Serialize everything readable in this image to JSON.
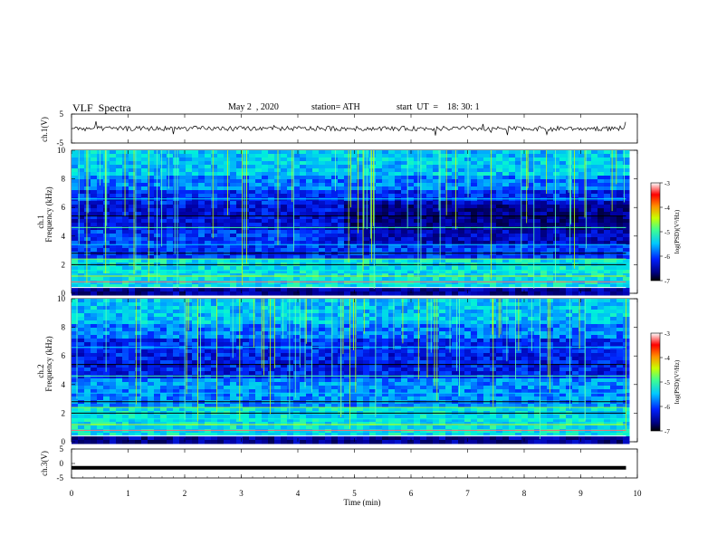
{
  "header": {
    "title": "VLF  Spectra",
    "date": "May 2  , 2020",
    "station": "station= ATH",
    "start": "start  UT  =    18: 30: 1"
  },
  "chart_data": [
    {
      "type": "line",
      "panel": "ch1-waveform",
      "ylabel": "ch.1(V)",
      "ylim": [
        -5,
        5
      ],
      "yticks": [
        "5",
        "-5"
      ],
      "xlim": [
        0,
        10
      ],
      "baseline": 0,
      "trace": "noisy waveform around 0 V, amplitude about 1 V",
      "color": "#000000"
    },
    {
      "type": "heatmap",
      "panel": "ch1-spectrogram",
      "ylabel": "ch.1\nFrequency  (kHz)",
      "ylim": [
        0,
        10
      ],
      "yticks": [
        "0",
        "2",
        "4",
        "6",
        "8",
        "10"
      ],
      "xlim": [
        0,
        10
      ],
      "colorbar": {
        "label": "log(PSD)(V²/Hz)",
        "range": [
          -7,
          -3
        ],
        "ticks": [
          "-3",
          "-4",
          "-5",
          "-6",
          "-7"
        ],
        "colormap": "jet"
      }
    },
    {
      "type": "heatmap",
      "panel": "ch2-spectrogram",
      "ylabel": "ch.2\nFrequency  (kHz)",
      "ylim": [
        0,
        10
      ],
      "yticks": [
        "0",
        "2",
        "4",
        "6",
        "8",
        "10"
      ],
      "xlim": [
        0,
        10
      ],
      "colorbar": {
        "label": "log(PSD)(V²/Hz)",
        "range": [
          -7,
          -3
        ],
        "ticks": [
          "-3",
          "-4",
          "-5",
          "-6",
          "-7"
        ],
        "colormap": "jet"
      }
    },
    {
      "type": "line",
      "panel": "ch3-waveform",
      "ylabel": "ch.3(V)",
      "ylim": [
        -5,
        5
      ],
      "yticks": [
        "5",
        "0",
        "-5"
      ],
      "xlim": [
        0,
        10
      ],
      "baseline": -1.5,
      "trace": "flat thick line",
      "color": "#000000"
    }
  ],
  "xaxis": {
    "label": "Time  (min)",
    "ticks": [
      "0",
      "1",
      "2",
      "3",
      "4",
      "5",
      "6",
      "7",
      "8",
      "9",
      "10"
    ],
    "data_end": 9.8
  }
}
